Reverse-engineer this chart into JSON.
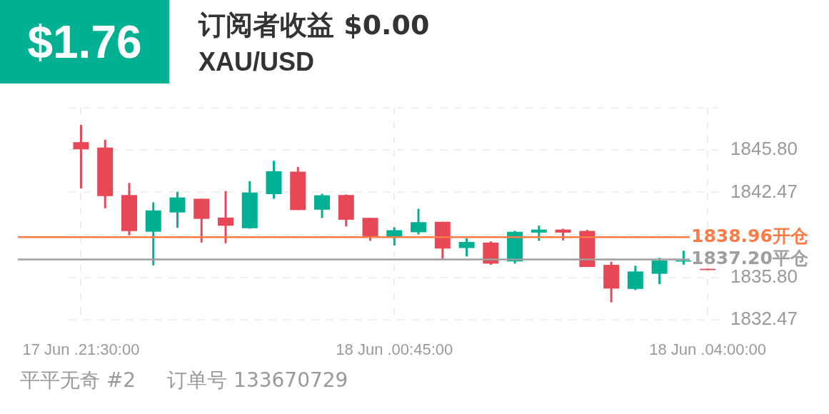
{
  "chart_data": {
    "type": "candlestick",
    "title": "订阅者收益 $0.00",
    "subtitle": "XAU/USD",
    "annotations": [
      "$1.76",
      "平平无奇 #2",
      "订单号 133670729"
    ],
    "categories": [
      "17 Jun .21:30:00",
      null,
      null,
      null,
      null,
      null,
      null,
      null,
      null,
      null,
      null,
      null,
      null,
      "18 Jun .00:45:00",
      null,
      null,
      null,
      null,
      null,
      null,
      null,
      null,
      null,
      null,
      null,
      null,
      "18 Jun .04:00:00"
    ],
    "ohlc": [
      [
        1846.41,
        1847.76,
        1842.78,
        1845.85
      ],
      [
        1845.99,
        1846.6,
        1841.22,
        1842.17
      ],
      [
        1842.26,
        1843.21,
        1839.1,
        1839.43
      ],
      [
        1839.38,
        1841.69,
        1836.74,
        1841.05
      ],
      [
        1840.89,
        1842.52,
        1839.69,
        1842.07
      ],
      [
        1841.97,
        1841.97,
        1838.53,
        1840.39
      ],
      [
        1840.49,
        1842.57,
        1838.48,
        1839.85
      ],
      [
        1839.66,
        1843.35,
        1839.62,
        1842.45
      ],
      [
        1842.33,
        1844.95,
        1841.97,
        1844.13
      ],
      [
        1844.1,
        1844.46,
        1841.08,
        1841.08
      ],
      [
        1841.11,
        1842.36,
        1840.46,
        1842.24
      ],
      [
        1842.26,
        1842.3,
        1839.8,
        1840.32
      ],
      [
        1840.47,
        1840.47,
        1838.67,
        1839.03
      ],
      [
        1839.0,
        1839.73,
        1838.3,
        1839.5
      ],
      [
        1839.34,
        1841.18,
        1839.17,
        1840.13
      ],
      [
        1840.16,
        1840.16,
        1837.26,
        1838.06
      ],
      [
        1838.1,
        1838.88,
        1837.44,
        1838.58
      ],
      [
        1838.53,
        1838.62,
        1836.79,
        1836.88
      ],
      [
        1837.05,
        1839.45,
        1836.88,
        1839.38
      ],
      [
        1839.31,
        1839.87,
        1838.67,
        1839.55
      ],
      [
        1839.55,
        1839.61,
        1838.7,
        1839.31
      ],
      [
        1839.45,
        1839.52,
        1836.62,
        1836.62
      ],
      [
        1836.78,
        1837.02,
        1833.84,
        1834.92
      ],
      [
        1834.89,
        1836.71,
        1834.8,
        1836.26
      ],
      [
        1836.08,
        1837.33,
        1835.27,
        1837.12
      ],
      [
        1837.04,
        1837.89,
        1836.79,
        1837.12
      ],
      [
        1836.47,
        1836.47,
        1836.37,
        1836.37
      ]
    ],
    "colors": [
      "#e84855",
      "#e84855",
      "#e84855",
      "#00b092",
      "#00b092",
      "#e84855",
      "#e84855",
      "#00b092",
      "#00b092",
      "#e84855",
      "#00b092",
      "#e84855",
      "#e84855",
      "#00b092",
      "#00b092",
      "#e84855",
      "#00b092",
      "#e84855",
      "#00b092",
      "#00b092",
      "#e84855",
      "#e84855",
      "#e84855",
      "#00b092",
      "#00b092",
      "#00b092",
      "#e84855"
    ],
    "ylim": [
      1832.47,
      1849.13
    ],
    "yticks": [
      1832.47,
      {
        "value": 1835.8,
        "label": "1835.80"
      },
      {
        "value": 1839.13,
        "label": null
      },
      1842.47,
      {
        "value": 1845.8,
        "label": "1845.80"
      },
      {
        "value": 1849.13,
        "label": null
      }
    ],
    "grid": true,
    "ref_lines": [
      {
        "axis": "y",
        "value": 1838.96,
        "label": "1838.96开仓",
        "color": "#ff7a45"
      },
      {
        "axis": "y",
        "value": 1837.2,
        "label": "1837.20平仓",
        "color": "#9e9e9e"
      }
    ]
  }
}
